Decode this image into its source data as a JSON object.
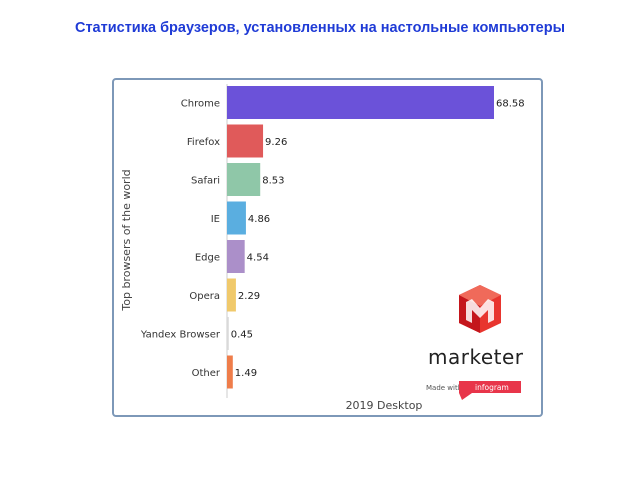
{
  "page": {
    "title": "Статистика браузеров, установленных на настольные компьютеры"
  },
  "chart_data": {
    "type": "bar",
    "orientation": "horizontal",
    "categories": [
      "Chrome",
      "Firefox",
      "Safari",
      "IE",
      "Edge",
      "Opera",
      "Yandex Browser",
      "Other"
    ],
    "values": [
      68.58,
      9.26,
      8.53,
      4.86,
      4.54,
      2.29,
      0.45,
      1.49
    ],
    "value_labels": [
      "68.58",
      "9.26",
      "8.53",
      "4.86",
      "4.54",
      "2.29",
      "0.45",
      "1.49"
    ],
    "colors": [
      "#6b52d9",
      "#e05a5a",
      "#8fc7a8",
      "#5aaee0",
      "#ab8fc9",
      "#f0c96b",
      "#d9d9d9",
      "#ef7d4a"
    ],
    "xlabel": "2019 Desktop",
    "ylabel": "Top browsers of the world",
    "xlim": [
      0,
      68.58
    ],
    "grid": false,
    "legend": "none"
  },
  "branding": {
    "logo_text": "marketer",
    "made_with": "Made with",
    "tool": "infogram",
    "logo_colors": [
      "#e8352e",
      "#c4161c",
      "#f06a5a"
    ],
    "tool_color": "#e8354a"
  }
}
